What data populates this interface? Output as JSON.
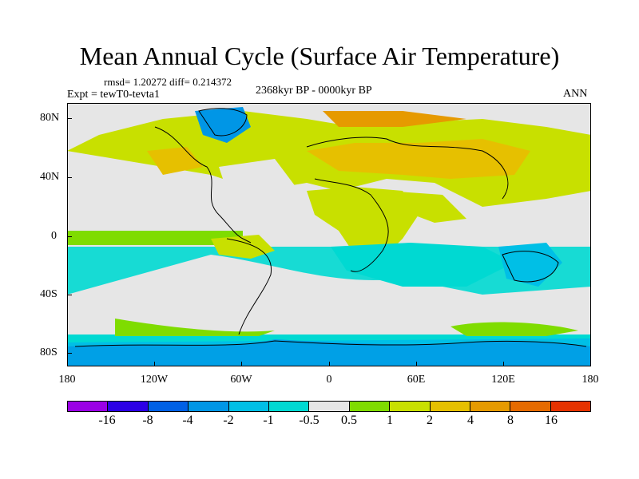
{
  "title": "Mean Annual Cycle (Surface Air Temperature)",
  "stats": "rmsd= 1.20272 diff= 0.214372",
  "experiment": "Expt = tewT0-tevta1",
  "period": "2368kyr BP - 0000kyr BP",
  "season": "ANN",
  "y_axis_labels": [
    "80N",
    "40N",
    "0",
    "40S",
    "80S"
  ],
  "x_axis_labels": [
    "180",
    "120W",
    "60W",
    "0",
    "60E",
    "120E",
    "180"
  ],
  "colorbar": {
    "colors": [
      "#9b00e6",
      "#2b00e6",
      "#0060e6",
      "#0096e6",
      "#00bfe6",
      "#00d9d2",
      "#e6e6e6",
      "#7fdc00",
      "#c8e000",
      "#e6c000",
      "#e69a00",
      "#e66a00",
      "#e63200"
    ],
    "labels": [
      "-16",
      "-8",
      "-4",
      "-2",
      "-1",
      "-0.5",
      "0.5",
      "1",
      "2",
      "4",
      "8",
      "16"
    ]
  }
}
